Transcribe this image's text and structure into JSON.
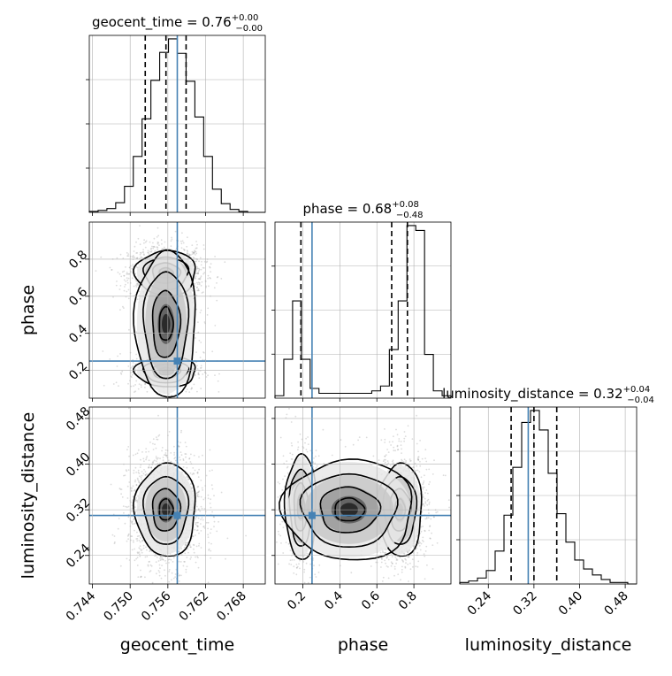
{
  "chart_data": {
    "type": "scatter",
    "variables": [
      {
        "name": "geocent_time",
        "truth": 0.7575,
        "range": [
          0.7435,
          0.7715
        ],
        "ticks": [
          "0.744",
          "0.750",
          "0.756",
          "0.762",
          "0.768"
        ],
        "tick_values": [
          0.744,
          0.75,
          0.756,
          0.762,
          0.768
        ],
        "title_name": "geocent_time = 0.76",
        "title_plus": "+0.00",
        "title_minus": "−0.00",
        "quantiles": [
          0.7524,
          0.7557,
          0.7589
        ]
      },
      {
        "name": "phase",
        "truth": 0.25,
        "range": [
          0.05,
          1.0
        ],
        "ticks": [
          "0.2",
          "0.4",
          "0.6",
          "0.8"
        ],
        "tick_values": [
          0.2,
          0.4,
          0.6,
          0.8
        ],
        "title_name": "phase = 0.68",
        "title_plus": "+0.08",
        "title_minus": "−0.48",
        "quantiles": [
          0.19,
          0.68,
          0.765
        ]
      },
      {
        "name": "luminosity_distance",
        "truth": 0.31,
        "range": [
          0.19,
          0.5
        ],
        "ticks": [
          "0.24",
          "0.32",
          "0.40",
          "0.48"
        ],
        "tick_values": [
          0.24,
          0.32,
          0.4,
          0.48
        ],
        "title_name": "luminosity_distance = 0.32",
        "title_plus": "+0.04",
        "title_minus": "−0.04",
        "quantiles": [
          0.28,
          0.32,
          0.36
        ]
      }
    ],
    "histograms": [
      {
        "variable": "geocent_time",
        "counts": [
          1,
          2,
          4,
          10,
          27,
          58,
          97,
          137,
          166,
          180,
          165,
          136,
          99,
          58,
          24,
          9,
          3,
          1,
          0,
          0
        ]
      },
      {
        "variable": "phase",
        "counts": [
          1,
          16,
          40,
          16,
          4,
          2,
          2,
          2,
          2,
          2,
          2,
          3,
          5,
          20,
          40,
          71,
          69,
          18,
          3,
          1
        ]
      },
      {
        "variable": "luminosity_distance",
        "counts": [
          1,
          2,
          4,
          9,
          22,
          46,
          78,
          108,
          116,
          103,
          74,
          47,
          28,
          16,
          10,
          6,
          3,
          1,
          1,
          0
        ]
      }
    ],
    "truth_color": "#4682b4",
    "quantile_line_color": "#000000",
    "sample_color": "#9a9a9a",
    "grid": true
  }
}
